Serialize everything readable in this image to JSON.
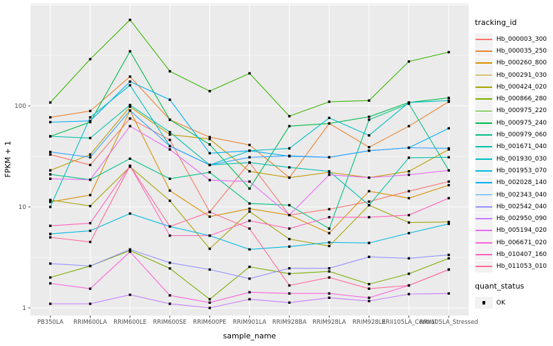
{
  "chart_data": {
    "type": "line",
    "title": "",
    "xlabel": "sample_name",
    "ylabel": "FPKM + 1",
    "x_categories": [
      "PB350LA",
      "RRIM600LA",
      "RRIM600LE",
      "RRIM600SE",
      "RRIM600PE",
      "RRIM901LA",
      "RRIM928BA",
      "RRIM928LA",
      "RRIM928LE",
      "RRII105LA_Control",
      "RRII105LA_Stressed"
    ],
    "y_axis": {
      "scale": "log10",
      "tick_labels": [
        "1",
        "10",
        "100"
      ],
      "tick_values": [
        1,
        10,
        100
      ],
      "major_grid_values": [
        1,
        10,
        100,
        1000
      ],
      "minor_grid_values": [
        3.1623,
        31.623,
        316.23
      ],
      "range_approx": [
        0.85,
        1030
      ]
    },
    "legend": {
      "title": "tracking_id",
      "position": "right"
    },
    "legend2": {
      "title": "quant_status",
      "items": [
        {
          "label": "OK",
          "marker": "black-filled-square"
        }
      ]
    },
    "style": {
      "panel_bg": "#EBEBEB",
      "grid_color": "#FFFFFF",
      "tick_label_color": "#4D4D4D",
      "tick_mark_color": "#333333",
      "axis_title_color": "#000000",
      "legend_key_bg": "#F2F2F2",
      "point_color": "#000000"
    },
    "series": [
      {
        "name": "Hb_000003_300",
        "color": "#F8766D",
        "values": [
          33,
          26,
          75,
          46,
          8.9,
          27.5,
          8.3,
          9.5,
          11.3,
          14.3,
          17.8
        ]
      },
      {
        "name": "Hb_000035_250",
        "color": "#EA8331",
        "values": [
          77,
          89,
          195,
          73,
          49,
          41,
          19.5,
          67,
          39,
          63,
          110
        ]
      },
      {
        "name": "Hb_000260_800",
        "color": "#D89000",
        "values": [
          11.2,
          13.1,
          90,
          14.5,
          8.0,
          9.6,
          8.3,
          5.5,
          14.3,
          12.2,
          16.4
        ]
      },
      {
        "name": "Hb_000291_030",
        "color": "#C09B00",
        "values": [
          23,
          33,
          98,
          52,
          47,
          22.5,
          19.5,
          22,
          19.5,
          22.5,
          37
        ]
      },
      {
        "name": "Hb_000424_020",
        "color": "#A3A500",
        "values": [
          11.7,
          10.2,
          25,
          11.5,
          3.85,
          9.0,
          4.8,
          4.1,
          10.4,
          7.0,
          7.1
        ]
      },
      {
        "name": "Hb_000866_280",
        "color": "#7CAE00",
        "values": [
          2.0,
          2.6,
          3.7,
          2.46,
          1.22,
          2.55,
          2.18,
          2.3,
          1.72,
          2.18,
          3.1
        ]
      },
      {
        "name": "Hb_000975_220",
        "color": "#39B600",
        "values": [
          108,
          290,
          710,
          220,
          140,
          210,
          79,
          110,
          113,
          275,
          340
        ]
      },
      {
        "name": "Hb_000975_240",
        "color": "#00BB4E",
        "values": [
          50,
          69,
          347,
          73,
          41.5,
          15.2,
          63,
          67,
          78,
          108,
          120
        ]
      },
      {
        "name": "Hb_000979_060",
        "color": "#00C087",
        "values": [
          21,
          18.6,
          30,
          19,
          22,
          10.8,
          10.4,
          6.1,
          73,
          105,
          23
        ]
      },
      {
        "name": "Hb_001671_040",
        "color": "#00C1AB",
        "values": [
          50,
          48,
          102,
          55,
          26,
          27.5,
          24.6,
          22.5,
          10.4,
          30.7,
          31
        ]
      },
      {
        "name": "Hb_001930_030",
        "color": "#00BFC4",
        "values": [
          10.0,
          77,
          160,
          40,
          26,
          36,
          38,
          76,
          51,
          108,
          113
        ]
      },
      {
        "name": "Hb_001953_070",
        "color": "#00BAE0",
        "values": [
          5.4,
          5.8,
          8.6,
          6.4,
          5.2,
          3.8,
          4.05,
          4.45,
          4.4,
          5.5,
          6.8
        ]
      },
      {
        "name": "Hb_002028_140",
        "color": "#00B0F6",
        "values": [
          69,
          71,
          174,
          115,
          34,
          36,
          31.7,
          31,
          36,
          38.5,
          60
        ]
      },
      {
        "name": "Hb_002343_040",
        "color": "#35A2FF",
        "values": [
          35,
          31,
          90,
          40,
          26,
          31,
          32,
          31,
          36,
          38.5,
          38
        ]
      },
      {
        "name": "Hb_002542_040",
        "color": "#9590FF",
        "values": [
          2.75,
          2.6,
          3.8,
          2.8,
          2.4,
          1.95,
          2.47,
          2.47,
          3.2,
          3.1,
          3.35
        ]
      },
      {
        "name": "Hb_002950_090",
        "color": "#C77CFF",
        "values": [
          1.1,
          1.1,
          1.35,
          1.1,
          1.0,
          1.22,
          1.13,
          1.26,
          1.17,
          1.37,
          1.39
        ]
      },
      {
        "name": "Hb_005194_020",
        "color": "#E76BF3",
        "values": [
          19,
          18.6,
          63,
          37,
          18.4,
          17.8,
          8.3,
          20.8,
          19.5,
          20.8,
          23
        ]
      },
      {
        "name": "Hb_006671_020",
        "color": "#FA62DB",
        "values": [
          1.75,
          1.55,
          3.6,
          1.33,
          1.13,
          1.43,
          1.39,
          1.39,
          1.26,
          1.67,
          2.4
        ]
      },
      {
        "name": "Hb_010407_160",
        "color": "#FF62BC",
        "values": [
          6.5,
          6.9,
          25.5,
          5.2,
          5.2,
          7.3,
          6.1,
          7.9,
          7.9,
          8.3,
          12.2
        ]
      },
      {
        "name": "Hb_011053_010",
        "color": "#FF6A98",
        "values": [
          5.0,
          4.5,
          25.5,
          6.4,
          8.9,
          6.1,
          1.67,
          2.0,
          1.55,
          1.67,
          2.4
        ]
      }
    ]
  }
}
